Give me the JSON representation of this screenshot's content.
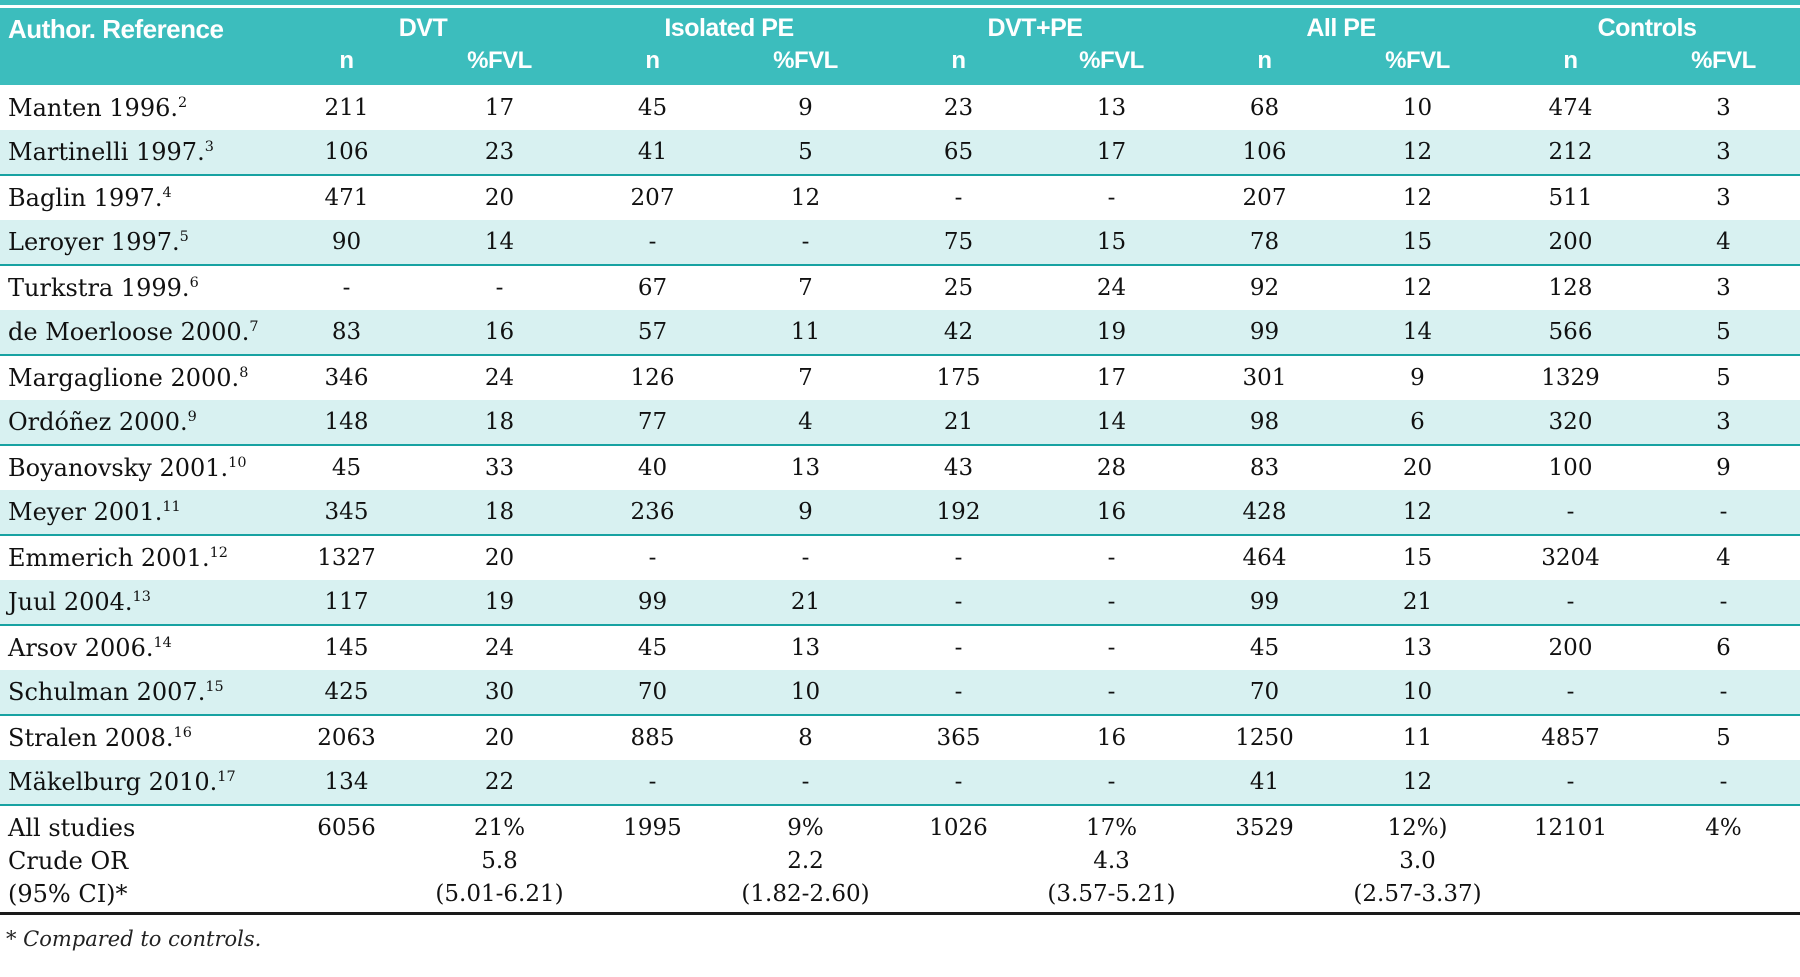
{
  "table": {
    "title_col_header": "Author. Reference",
    "groups": [
      {
        "label": "DVT"
      },
      {
        "label": "Isolated PE"
      },
      {
        "label": "DVT+PE"
      },
      {
        "label": "All PE"
      },
      {
        "label": "Controls"
      }
    ],
    "subheaders": {
      "n": "n",
      "fvl": "%FVL"
    },
    "rows": [
      {
        "author": "Manten 1996.",
        "ref": "2",
        "shaded": false,
        "values": [
          "211",
          "17",
          "45",
          "9",
          "23",
          "13",
          "68",
          "10",
          "474",
          "3"
        ]
      },
      {
        "author": "Martinelli 1997.",
        "ref": "3",
        "shaded": true,
        "values": [
          "106",
          "23",
          "41",
          "5",
          "65",
          "17",
          "106",
          "12",
          "212",
          "3"
        ]
      },
      {
        "author": "Baglin 1997.",
        "ref": "4",
        "shaded": false,
        "values": [
          "471",
          "20",
          "207",
          "12",
          "-",
          "-",
          "207",
          "12",
          "511",
          "3"
        ]
      },
      {
        "author": "Leroyer 1997.",
        "ref": "5",
        "shaded": true,
        "values": [
          "90",
          "14",
          "-",
          "-",
          "75",
          "15",
          "78",
          "15",
          "200",
          "4"
        ]
      },
      {
        "author": "Turkstra 1999.",
        "ref": "6",
        "shaded": false,
        "values": [
          "-",
          "-",
          "67",
          "7",
          "25",
          "24",
          "92",
          "12",
          "128",
          "3"
        ]
      },
      {
        "author": "de Moerloose 2000.",
        "ref": "7",
        "shaded": true,
        "values": [
          "83",
          "16",
          "57",
          "11",
          "42",
          "19",
          "99",
          "14",
          "566",
          "5"
        ]
      },
      {
        "author": "Margaglione 2000.",
        "ref": "8",
        "shaded": false,
        "values": [
          "346",
          "24",
          "126",
          "7",
          "175",
          "17",
          "301",
          "9",
          "1329",
          "5"
        ]
      },
      {
        "author": "Ordóñez 2000.",
        "ref": "9",
        "shaded": true,
        "values": [
          "148",
          "18",
          "77",
          "4",
          "21",
          "14",
          "98",
          "6",
          "320",
          "3"
        ]
      },
      {
        "author": "Boyanovsky 2001.",
        "ref": "10",
        "shaded": false,
        "values": [
          "45",
          "33",
          "40",
          "13",
          "43",
          "28",
          "83",
          "20",
          "100",
          "9"
        ]
      },
      {
        "author": "Meyer 2001.",
        "ref": "11",
        "shaded": true,
        "values": [
          "345",
          "18",
          "236",
          "9",
          "192",
          "16",
          "428",
          "12",
          "-",
          "-"
        ]
      },
      {
        "author": "Emmerich 2001.",
        "ref": "12",
        "shaded": false,
        "values": [
          "1327",
          "20",
          "-",
          "-",
          "-",
          "-",
          "464",
          "15",
          "3204",
          "4"
        ]
      },
      {
        "author": "Juul 2004.",
        "ref": "13",
        "shaded": true,
        "values": [
          "117",
          "19",
          "99",
          "21",
          "-",
          "-",
          "99",
          "21",
          "-",
          "-"
        ]
      },
      {
        "author": "Arsov 2006.",
        "ref": "14",
        "shaded": false,
        "values": [
          "145",
          "24",
          "45",
          "13",
          "-",
          "-",
          "45",
          "13",
          "200",
          "6"
        ]
      },
      {
        "author": "Schulman 2007.",
        "ref": "15",
        "shaded": true,
        "values": [
          "425",
          "30",
          "70",
          "10",
          "-",
          "-",
          "70",
          "10",
          "-",
          "-"
        ]
      },
      {
        "author": "Stralen 2008.",
        "ref": "16",
        "shaded": false,
        "values": [
          "2063",
          "20",
          "885",
          "8",
          "365",
          "16",
          "1250",
          "11",
          "4857",
          "5"
        ]
      },
      {
        "author": "Mäkelburg 2010.",
        "ref": "17",
        "shaded": true,
        "values": [
          "134",
          "22",
          "-",
          "-",
          "-",
          "-",
          "41",
          "12",
          "-",
          "-"
        ]
      }
    ],
    "summary": {
      "labels": [
        "All studies",
        "Crude OR",
        "(95% CI)*"
      ],
      "cells": [
        [
          "6056"
        ],
        [
          "21%",
          "5.8",
          "(5.01-6.21)"
        ],
        [
          "1995"
        ],
        [
          "9%",
          "2.2",
          "(1.82-2.60)"
        ],
        [
          "1026"
        ],
        [
          "17%",
          "4.3",
          "(3.57-5.21)"
        ],
        [
          "3529"
        ],
        [
          "12%)",
          "3.0",
          "(2.57-3.37)"
        ],
        [
          "12101"
        ],
        [
          "4%"
        ]
      ]
    },
    "footnote": "* Compared to controls."
  },
  "colors": {
    "header_teal": "#3CBDBD",
    "row_shaded": "#D8F1F1",
    "separator_teal": "#17A2A2",
    "bottom_rule": "#1a1a1a"
  }
}
